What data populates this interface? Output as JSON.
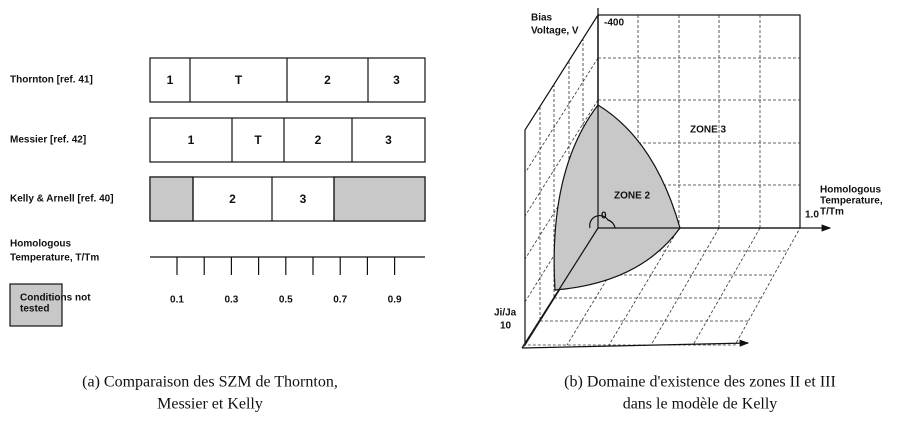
{
  "left": {
    "rows": [
      {
        "label": "Thornton [ref. 41]",
        "zones": [
          "1",
          "T",
          "2",
          "3"
        ]
      },
      {
        "label": "Messier [ref. 42]",
        "zones": [
          "1",
          "T",
          "2",
          "3"
        ]
      },
      {
        "label": "Kelly & Arnell [ref. 40]",
        "zones": [
          "2",
          "3"
        ]
      }
    ],
    "axis_label": [
      "Homologous",
      "Temperature, T/Tm"
    ],
    "ticks": [
      "0.1",
      "0.3",
      "0.5",
      "0.7",
      "0.9"
    ],
    "legend": [
      "Conditions not",
      "tested"
    ],
    "caption": [
      "(a) Comparaison des SZM de Thornton,",
      "Messier et Kelly"
    ]
  },
  "right": {
    "bias_label": [
      "Bias",
      "Voltage, V"
    ],
    "bias_max": "-400",
    "zone3": "ZONE 3",
    "zone2": "ZONE 2",
    "origin": "0",
    "temp_label": [
      "Homologous",
      "Temperature,",
      "T/Tm"
    ],
    "temp_max": "1.0",
    "ji_label": "Ji/Ja",
    "ji_max": "10",
    "caption": [
      "(b) Domaine d'existence des zones II et III",
      "dans le modèle de Kelly"
    ]
  }
}
